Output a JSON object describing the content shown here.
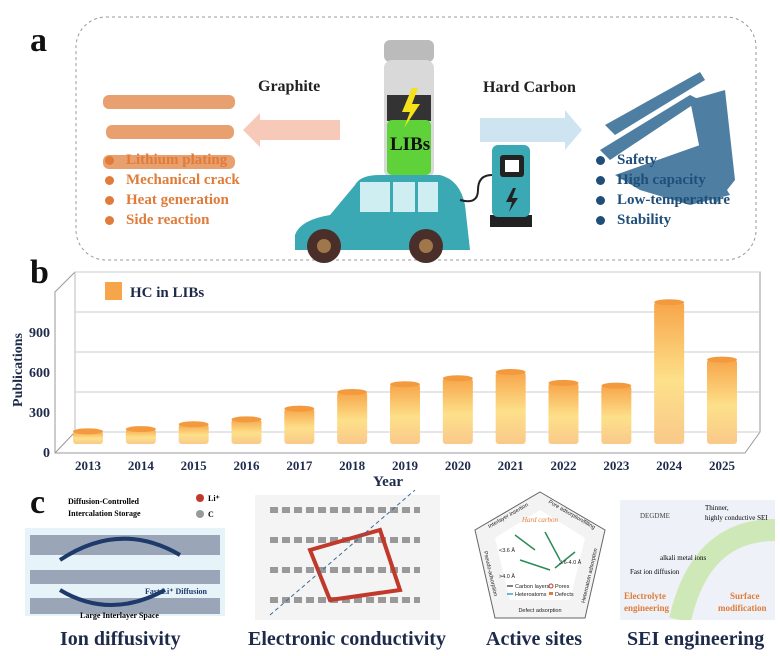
{
  "panels": {
    "a": {
      "label": "a",
      "center_battery": "LIBs",
      "left_arrow": "Graphite",
      "right_arrow": "Hard Carbon",
      "graphite_issues": [
        "Lithium plating",
        "Mechanical crack",
        "Heat generation",
        "Side reaction"
      ],
      "hard_carbon_benefits": [
        "Safety",
        "High capacity",
        "Low-temperature",
        "Stability"
      ],
      "colors": {
        "graphite": "#e07b39",
        "hard_carbon": "#1f4e79",
        "car": "#3aa9b3"
      }
    },
    "b": {
      "label": "b"
    },
    "c": {
      "label": "c",
      "items": [
        {
          "caption": "Ion diffusivity",
          "inset_texts": [
            "Diffusion-Controlled",
            "Intercalation Storage",
            "Li⁺",
            "C",
            "Fast Li⁺ Diffusion",
            "Large Interlayer Space"
          ]
        },
        {
          "caption": "Electronic conductivity",
          "inset_texts": []
        },
        {
          "caption": "Active sites",
          "inset_texts": [
            "Hard carbon",
            "Interlayer insertion",
            "Pore adsorption/filling",
            "Heteroatom adsorption",
            "Defect adsorption",
            "Pseudo-adsorption",
            "<3.6 Å",
            "3.6-4.0 Å",
            ">4.0 Å",
            "Carbon layers",
            "Pores",
            "Heteroatoms",
            "Defects"
          ]
        },
        {
          "caption": "SEI engineering",
          "inset_texts": [
            "DEGDME",
            "Thinner,",
            "highly conductive SEI",
            "alkali metal ions",
            "Fast ion diffusion",
            "Electrolyte",
            "engineering",
            "Surface",
            "modification"
          ]
        }
      ]
    }
  },
  "chart_data": {
    "type": "bar",
    "style": "3d-cylinder",
    "title": "",
    "xlabel": "Year",
    "ylabel": "Publications",
    "legend": {
      "entries": [
        "HC in LIBs"
      ],
      "placement": "top-left"
    },
    "categories": [
      "2013",
      "2014",
      "2015",
      "2016",
      "2017",
      "2018",
      "2019",
      "2020",
      "2021",
      "2022",
      "2023",
      "2024",
      "2025"
    ],
    "series": [
      {
        "name": "HC in LIBs",
        "values": [
          95,
          112,
          148,
          185,
          265,
          390,
          448,
          493,
          540,
          458,
          438,
          1063,
          633
        ]
      }
    ],
    "yticks": [
      0,
      300,
      600,
      900
    ],
    "ylim": [
      0,
      1200
    ],
    "grid": true,
    "colors": {
      "bar_top": "#f7a54a",
      "bar_mid": "#fde08a",
      "bar_bottom": "#f9c98a",
      "axis_text": "#1d2a4a"
    }
  }
}
